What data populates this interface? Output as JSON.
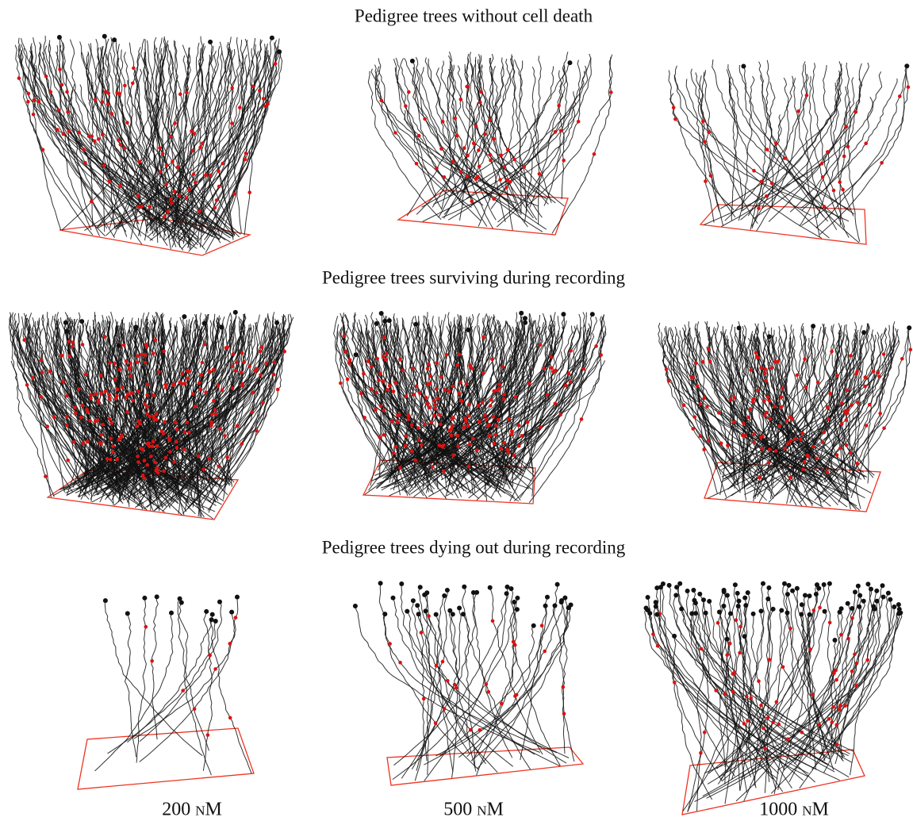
{
  "rows": [
    {
      "title": "Pedigree trees without cell death"
    },
    {
      "title": "Pedigree trees surviving during recording"
    },
    {
      "title": "Pedigree trees dying out during recording"
    }
  ],
  "columns": [
    {
      "label": "200 nM"
    },
    {
      "label": "500 nM"
    },
    {
      "label": "1000 nM"
    }
  ]
}
